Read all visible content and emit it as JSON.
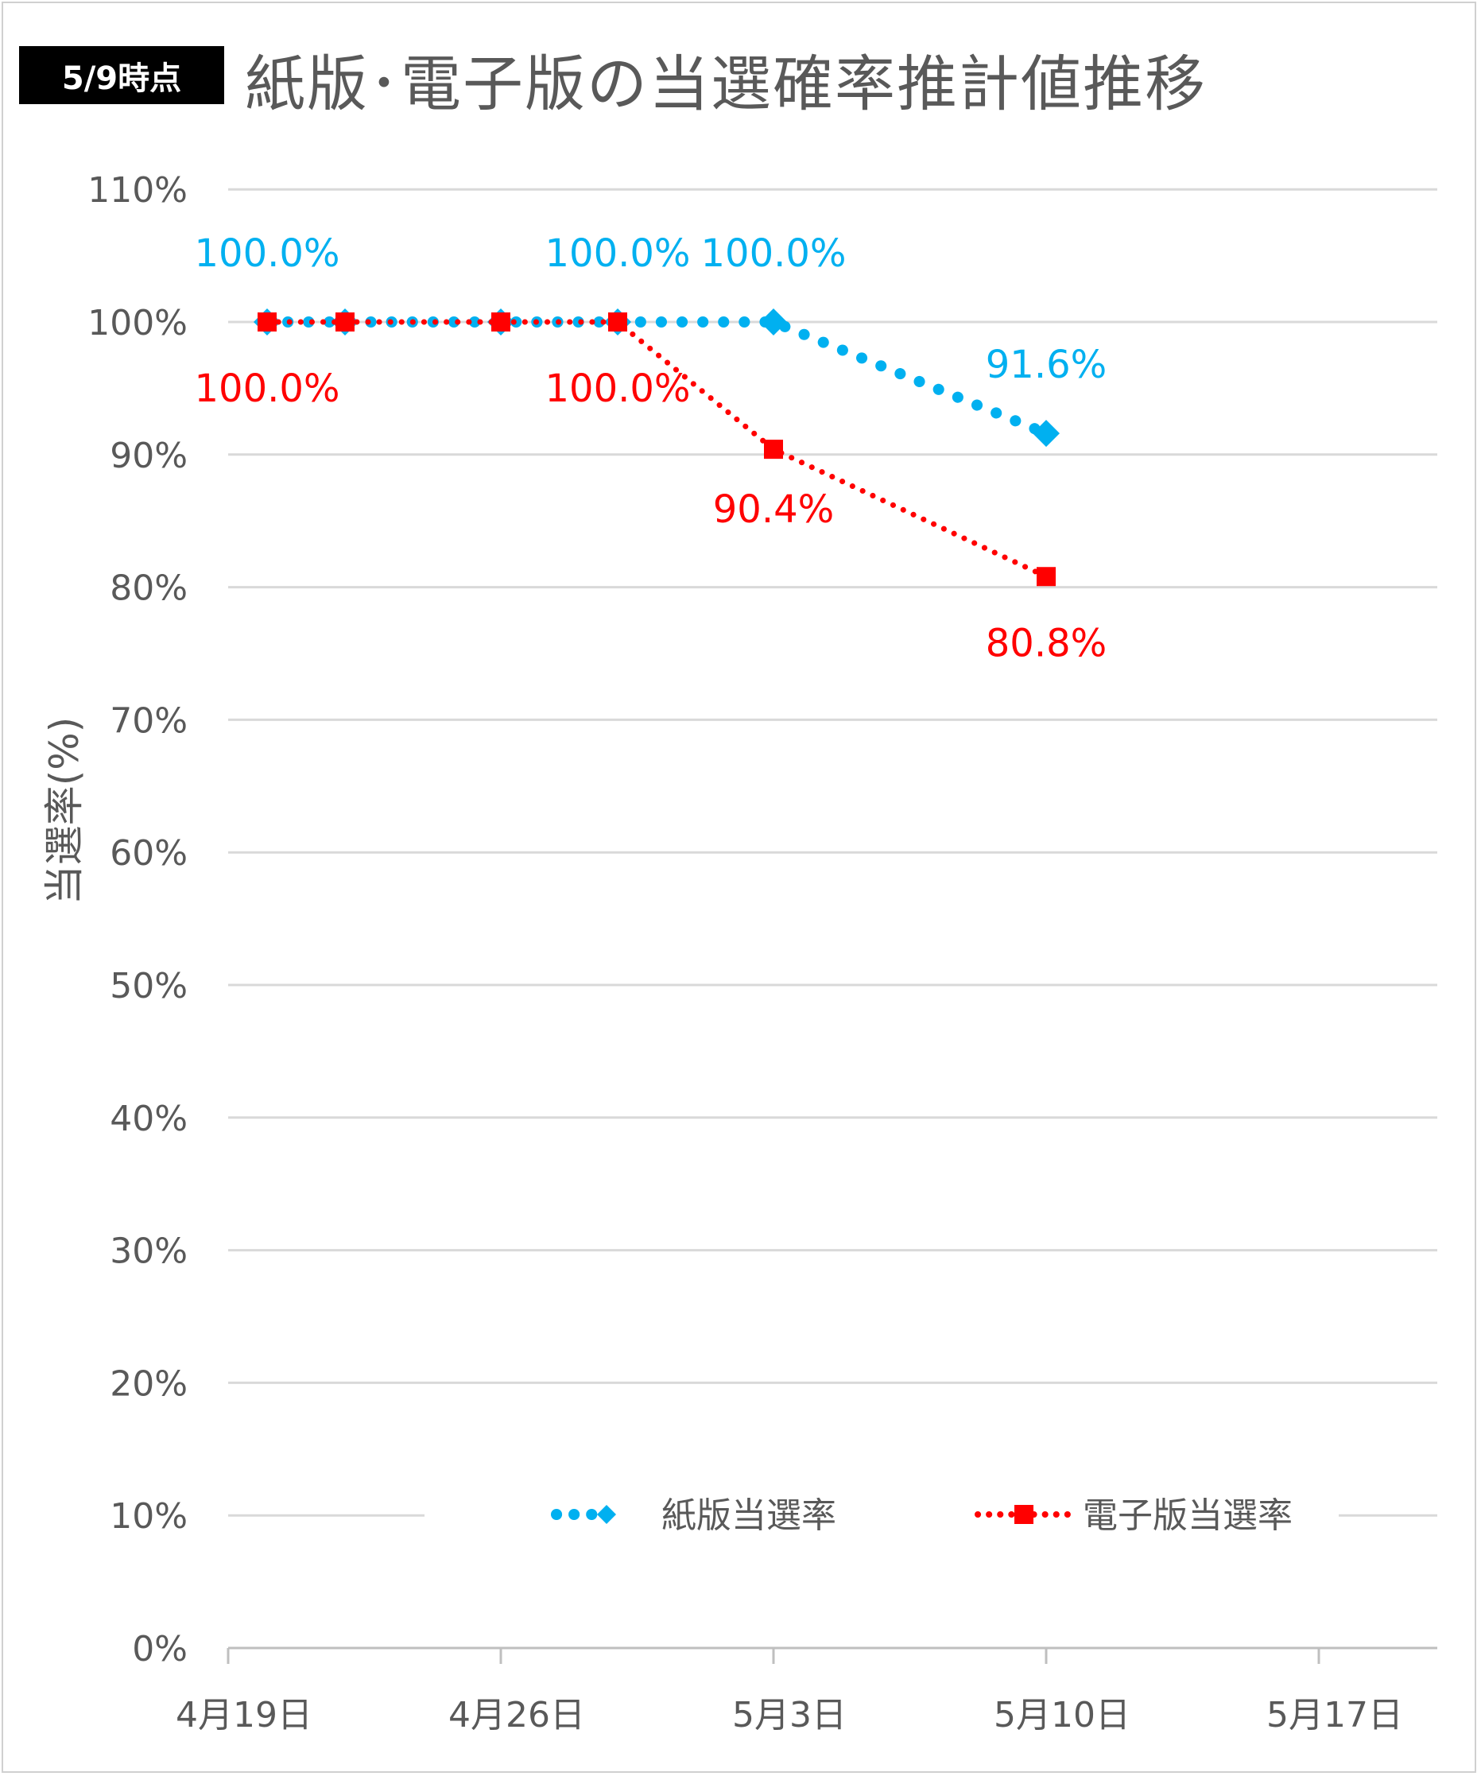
{
  "badge": "5/9時点",
  "title": "紙版･電子版の当選確率推計値推移",
  "colors": {
    "paper": "#00B0F0",
    "electronic": "#FF0000",
    "grid": "#D9D9D9",
    "axis_text": "#595959"
  },
  "chart_data": {
    "type": "line",
    "title": "紙版･電子版の当選確率推計値推移",
    "xlabel": "",
    "ylabel": "当選率(%)",
    "x_ticks": [
      "4月19日",
      "4月26日",
      "5月3日",
      "5月10日",
      "5月17日"
    ],
    "y_ticks": [
      "0%",
      "10%",
      "20%",
      "30%",
      "40%",
      "50%",
      "60%",
      "70%",
      "80%",
      "90%",
      "100%",
      "110%"
    ],
    "xlim": [
      "2021-04-19",
      "2021-05-20"
    ],
    "ylim": [
      0,
      110
    ],
    "grid": true,
    "legend": "bottom",
    "series": [
      {
        "name": "紙版当選率",
        "color": "#00B0F0",
        "marker": "diamond",
        "line_style": "dotted",
        "points": [
          {
            "date": "2021-04-20",
            "value": 100.0,
            "label": "100.0%"
          },
          {
            "date": "2021-04-22",
            "value": 100.0,
            "label": ""
          },
          {
            "date": "2021-04-26",
            "value": 100.0,
            "label": ""
          },
          {
            "date": "2021-04-29",
            "value": 100.0,
            "label": "100.0%"
          },
          {
            "date": "2021-05-03",
            "value": 100.0,
            "label": "100.0%"
          },
          {
            "date": "2021-05-10",
            "value": 91.6,
            "label": "91.6%"
          }
        ]
      },
      {
        "name": "電子版当選率",
        "color": "#FF0000",
        "marker": "square",
        "line_style": "dotted",
        "points": [
          {
            "date": "2021-04-20",
            "value": 100.0,
            "label": "100.0%"
          },
          {
            "date": "2021-04-22",
            "value": 100.0,
            "label": ""
          },
          {
            "date": "2021-04-26",
            "value": 100.0,
            "label": ""
          },
          {
            "date": "2021-04-29",
            "value": 100.0,
            "label": "100.0%"
          },
          {
            "date": "2021-05-03",
            "value": 90.4,
            "label": "90.4%"
          },
          {
            "date": "2021-05-10",
            "value": 80.8,
            "label": "80.8%"
          }
        ]
      }
    ]
  }
}
